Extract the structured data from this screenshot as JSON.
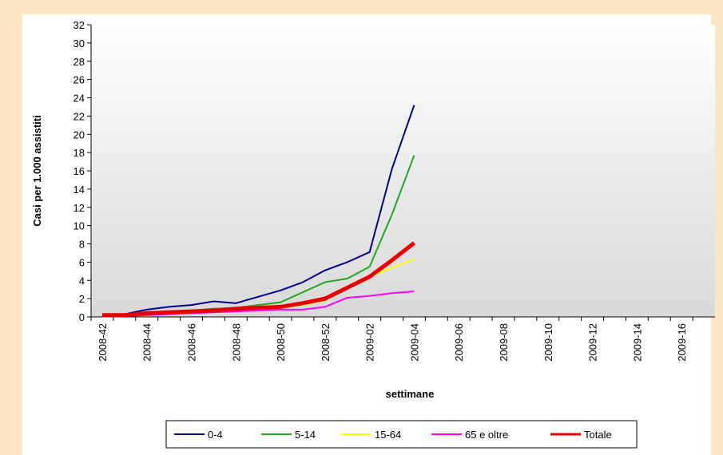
{
  "chart_data": {
    "type": "line",
    "x_label": "settimane",
    "y_label": "Casi per 1.000 assistiti",
    "categories": [
      "2008-42",
      null,
      "2008-44",
      null,
      "2008-46",
      null,
      "2008-48",
      null,
      "2008-50",
      null,
      "2008-52",
      null,
      "2009-02",
      null,
      "2009-04",
      null,
      "2009-06",
      null,
      "2009-08",
      null,
      "2009-10",
      null,
      "2009-12",
      null,
      "2009-14",
      null,
      "2009-16",
      null
    ],
    "series": [
      {
        "name": "0-4",
        "color": "#00008b",
        "values": [
          0.2,
          0.3,
          0.8,
          1.1,
          1.3,
          1.7,
          1.5,
          2.2,
          2.9,
          3.8,
          5.1,
          6.0,
          7.1,
          16.2,
          23.2,
          null,
          null,
          null,
          null,
          null,
          null,
          null,
          null,
          null,
          null,
          null,
          null,
          null
        ]
      },
      {
        "name": "5-14",
        "color": "#1fa81f",
        "values": [
          0.2,
          0.2,
          0.4,
          0.6,
          0.7,
          0.9,
          1.0,
          1.3,
          1.6,
          2.7,
          3.8,
          4.2,
          5.5,
          11.2,
          17.7,
          null,
          null,
          null,
          null,
          null,
          null,
          null,
          null,
          null,
          null,
          null,
          null,
          null
        ]
      },
      {
        "name": "15-64",
        "color": "#ffff00",
        "values": [
          0.1,
          0.2,
          0.3,
          0.4,
          0.5,
          0.6,
          0.8,
          0.9,
          1.0,
          1.3,
          1.8,
          3.1,
          4.4,
          5.4,
          6.3,
          null,
          null,
          null,
          null,
          null,
          null,
          null,
          null,
          null,
          null,
          null,
          null,
          null
        ]
      },
      {
        "name": "65 e oltre",
        "color": "#ff00ff",
        "values": [
          0.1,
          0.1,
          0.2,
          0.3,
          0.4,
          0.5,
          0.6,
          0.7,
          0.8,
          0.8,
          1.1,
          2.1,
          2.3,
          2.6,
          2.8,
          null,
          null,
          null,
          null,
          null,
          null,
          null,
          null,
          null,
          null,
          null,
          null,
          null
        ]
      },
      {
        "name": "Totale",
        "color": "#e60000",
        "width": 5,
        "values": [
          0.2,
          0.2,
          0.4,
          0.5,
          0.6,
          0.7,
          0.9,
          1.0,
          1.1,
          1.5,
          2.0,
          3.2,
          4.4,
          6.2,
          8.1,
          null,
          null,
          null,
          null,
          null,
          null,
          null,
          null,
          null,
          null,
          null,
          null,
          null
        ]
      }
    ],
    "ylim": [
      0,
      32
    ],
    "yticks": [
      0,
      2,
      4,
      6,
      8,
      10,
      12,
      14,
      16,
      18,
      20,
      22,
      24,
      26,
      28,
      30,
      32
    ],
    "grid": false,
    "legend": "bottom"
  }
}
